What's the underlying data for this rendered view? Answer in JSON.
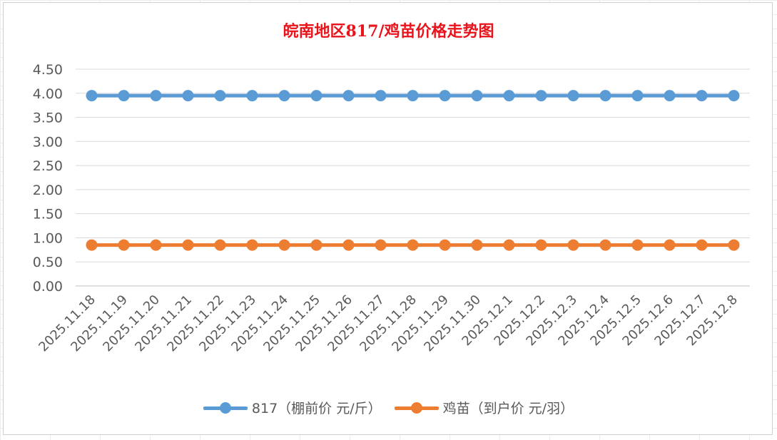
{
  "chart_data": {
    "type": "line",
    "title": "皖南地区817/鸡苗价格走势图",
    "categories": [
      "2025.11.18",
      "2025.11.19",
      "2025.11.20",
      "2025.11.21",
      "2025.11.22",
      "2025.11.23",
      "2025.11.24",
      "2025.11.25",
      "2025.11.26",
      "2025.11.27",
      "2025.11.28",
      "2025.11.29",
      "2025.11.30",
      "2025.12.1",
      "2025.12.2",
      "2025.12.3",
      "2025.12.4",
      "2025.12.5",
      "2025.12.6",
      "2025.12.7",
      "2025.12.8"
    ],
    "series": [
      {
        "name": "817（棚前价 元/斤）",
        "color": "#5b9bd5",
        "values": [
          3.95,
          3.95,
          3.95,
          3.95,
          3.95,
          3.95,
          3.95,
          3.95,
          3.95,
          3.95,
          3.95,
          3.95,
          3.95,
          3.95,
          3.95,
          3.95,
          3.95,
          3.95,
          3.95,
          3.95,
          3.95
        ]
      },
      {
        "name": "鸡苗（到户价 元/羽）",
        "color": "#ed7d31",
        "values": [
          0.85,
          0.85,
          0.85,
          0.85,
          0.85,
          0.85,
          0.85,
          0.85,
          0.85,
          0.85,
          0.85,
          0.85,
          0.85,
          0.85,
          0.85,
          0.85,
          0.85,
          0.85,
          0.85,
          0.85,
          0.85
        ]
      }
    ],
    "yticks": [
      "0.00",
      "0.50",
      "1.00",
      "1.50",
      "2.00",
      "2.50",
      "3.00",
      "3.50",
      "4.00",
      "4.50"
    ],
    "ylim": [
      0,
      4.5
    ],
    "grid": true,
    "legend_position": "bottom"
  }
}
